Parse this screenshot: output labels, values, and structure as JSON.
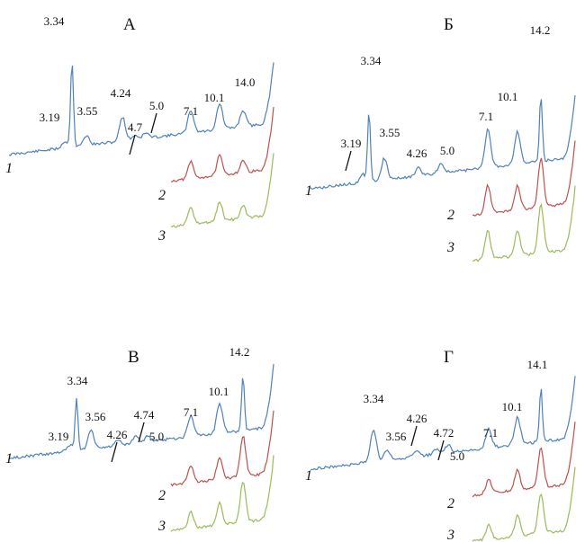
{
  "figure": {
    "colors": {
      "1": "#4f81bd",
      "2": "#c0504d",
      "3": "#9bbb59"
    },
    "panels": [
      {
        "label": "А",
        "curve_labels": [
          "1",
          "2",
          "3"
        ],
        "peaks": [
          {
            "label": "3.34"
          },
          {
            "label": "3.19"
          },
          {
            "label": "3.55"
          },
          {
            "label": "4.24"
          },
          {
            "label": "4.7"
          },
          {
            "label": "5.0"
          },
          {
            "label": "7.1"
          },
          {
            "label": "10.1"
          },
          {
            "label": "14.0"
          }
        ]
      },
      {
        "label": "Б",
        "curve_labels": [
          "1",
          "2",
          "3"
        ],
        "peaks": [
          {
            "label": "3.34"
          },
          {
            "label": "3.19"
          },
          {
            "label": "3.55"
          },
          {
            "label": "4.26"
          },
          {
            "label": "5.0"
          },
          {
            "label": "7.1"
          },
          {
            "label": "10.1"
          },
          {
            "label": "14.2"
          }
        ]
      },
      {
        "label": "В",
        "curve_labels": [
          "1",
          "2",
          "3"
        ],
        "peaks": [
          {
            "label": "3.34"
          },
          {
            "label": "3.19"
          },
          {
            "label": "3.56"
          },
          {
            "label": "4.26"
          },
          {
            "label": "4.74"
          },
          {
            "label": "5.0"
          },
          {
            "label": "7.1"
          },
          {
            "label": "10.1"
          },
          {
            "label": "14.2"
          }
        ]
      },
      {
        "label": "Г",
        "curve_labels": [
          "1",
          "2",
          "3"
        ],
        "peaks": [
          {
            "label": "3.34"
          },
          {
            "label": "3.56"
          },
          {
            "label": "4.26"
          },
          {
            "label": "4.72"
          },
          {
            "label": "5.0"
          },
          {
            "label": "7.1"
          },
          {
            "label": "10.1"
          },
          {
            "label": "14.1"
          }
        ]
      }
    ]
  }
}
